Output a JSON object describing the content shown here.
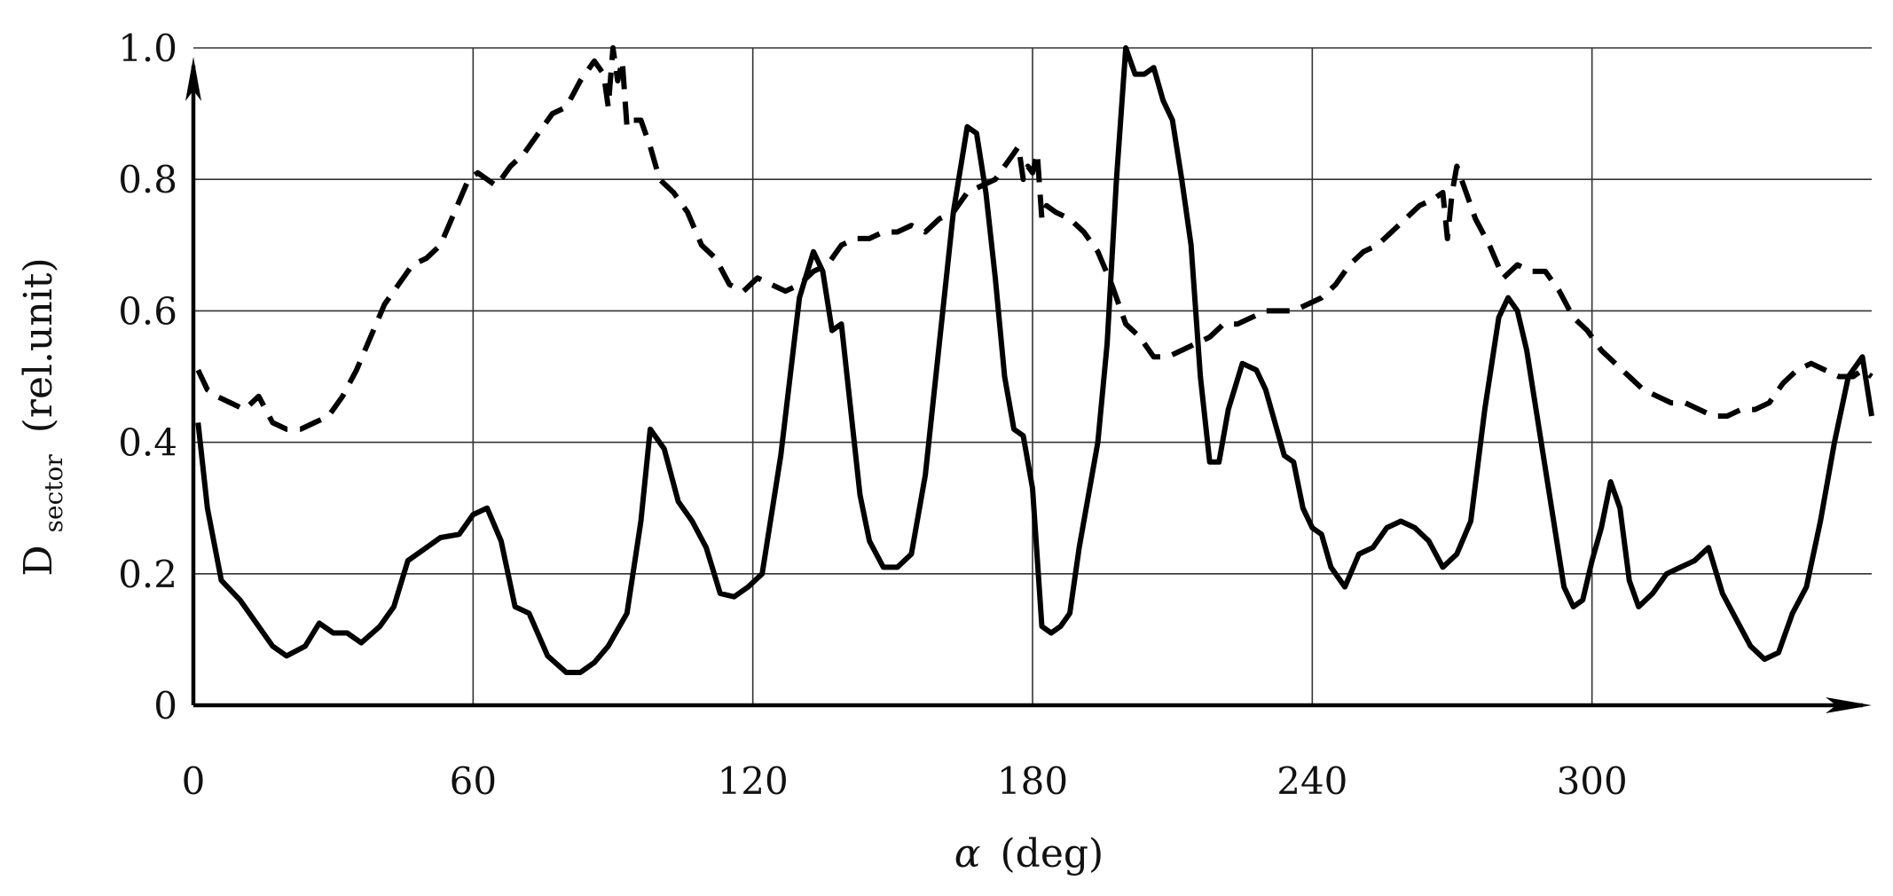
{
  "chart_data": {
    "type": "line",
    "xlabel": "α (deg)",
    "xlabel_symbol": "α",
    "xlabel_unit": "(deg)",
    "ylabel": "Dsector (rel.unit)",
    "ylabel_main": "D",
    "ylabel_sub": "sector",
    "ylabel_unit": "(rel.unit)",
    "xlim": [
      0,
      360
    ],
    "ylim": [
      0,
      1.0
    ],
    "xticks": [
      0,
      60,
      120,
      180,
      240,
      300
    ],
    "xtick_labels": [
      "0",
      "60",
      "120",
      "180",
      "240",
      "300"
    ],
    "yticks": [
      0,
      0.2,
      0.4,
      0.6,
      0.8,
      1.0
    ],
    "ytick_labels": [
      "0",
      "0.2",
      "0.4",
      "0.6",
      "0.8",
      "1.0"
    ],
    "grid": true,
    "colors": {
      "axis": "#000000",
      "grid": "#333333",
      "series": "#000000"
    },
    "series": [
      {
        "style": "solid",
        "x": [
          1,
          3,
          6,
          10,
          14,
          17,
          20,
          24,
          27,
          30,
          33,
          36,
          40,
          43,
          46,
          50,
          53,
          57,
          60,
          63,
          66,
          69,
          72,
          76,
          80,
          83,
          86,
          89,
          93,
          96,
          98,
          101,
          104,
          107,
          110,
          113,
          116,
          119,
          122,
          126,
          130,
          133,
          135,
          137,
          139,
          141,
          143,
          145,
          148,
          151,
          154,
          157,
          160,
          163,
          166,
          168,
          170,
          172,
          174,
          176,
          178,
          180,
          182,
          184,
          186,
          188,
          190,
          192,
          194,
          196,
          198,
          200,
          202,
          204,
          206,
          208,
          210,
          212,
          214,
          216,
          218,
          220,
          222,
          225,
          228,
          230,
          232,
          234,
          236,
          238,
          240,
          242,
          244,
          247,
          250,
          253,
          256,
          259,
          262,
          265,
          268,
          271,
          274,
          277,
          280,
          282,
          284,
          286,
          288,
          290,
          292,
          294,
          296,
          298,
          300,
          302,
          304,
          306,
          308,
          310,
          313,
          316,
          319,
          322,
          325,
          328,
          331,
          334,
          337,
          340,
          343,
          346,
          349,
          352,
          355,
          358,
          360
        ],
        "y": [
          0.43,
          0.3,
          0.19,
          0.16,
          0.12,
          0.09,
          0.075,
          0.09,
          0.125,
          0.11,
          0.11,
          0.095,
          0.12,
          0.15,
          0.22,
          0.24,
          0.255,
          0.26,
          0.29,
          0.3,
          0.25,
          0.15,
          0.14,
          0.075,
          0.05,
          0.05,
          0.065,
          0.09,
          0.14,
          0.28,
          0.42,
          0.39,
          0.31,
          0.28,
          0.24,
          0.17,
          0.165,
          0.18,
          0.2,
          0.38,
          0.62,
          0.69,
          0.66,
          0.57,
          0.58,
          0.45,
          0.32,
          0.25,
          0.21,
          0.21,
          0.23,
          0.35,
          0.55,
          0.75,
          0.88,
          0.87,
          0.78,
          0.65,
          0.5,
          0.42,
          0.41,
          0.33,
          0.12,
          0.11,
          0.12,
          0.14,
          0.24,
          0.32,
          0.4,
          0.55,
          0.8,
          1.0,
          0.96,
          0.96,
          0.97,
          0.92,
          0.89,
          0.8,
          0.7,
          0.5,
          0.37,
          0.37,
          0.45,
          0.52,
          0.51,
          0.48,
          0.43,
          0.38,
          0.37,
          0.3,
          0.27,
          0.26,
          0.21,
          0.18,
          0.23,
          0.24,
          0.27,
          0.28,
          0.27,
          0.25,
          0.21,
          0.23,
          0.28,
          0.45,
          0.59,
          0.62,
          0.6,
          0.54,
          0.45,
          0.36,
          0.27,
          0.18,
          0.15,
          0.16,
          0.22,
          0.27,
          0.34,
          0.3,
          0.19,
          0.15,
          0.17,
          0.2,
          0.21,
          0.22,
          0.24,
          0.17,
          0.13,
          0.09,
          0.07,
          0.08,
          0.14,
          0.18,
          0.28,
          0.4,
          0.5,
          0.53,
          0.44
        ]
      },
      {
        "style": "dashed",
        "x": [
          1,
          3,
          5,
          8,
          11,
          14,
          17,
          20,
          23,
          26,
          29,
          32,
          35,
          38,
          41,
          44,
          47,
          50,
          53,
          56,
          59,
          61,
          63,
          65,
          68,
          71,
          74,
          77,
          80,
          83,
          86,
          88,
          89,
          90,
          91,
          92,
          93,
          94,
          96,
          98,
          100,
          103,
          106,
          109,
          112,
          115,
          118,
          121,
          124,
          127,
          130,
          133,
          136,
          139,
          142,
          145,
          148,
          151,
          154,
          157,
          160,
          163,
          166,
          169,
          172,
          174,
          176,
          177,
          178,
          179,
          180,
          181,
          182,
          183,
          185,
          188,
          191,
          194,
          197,
          200,
          203,
          206,
          209,
          212,
          215,
          218,
          221,
          224,
          227,
          230,
          233,
          236,
          239,
          242,
          245,
          248,
          251,
          254,
          257,
          260,
          263,
          266,
          268,
          269,
          270,
          271,
          272,
          273,
          275,
          278,
          281,
          284,
          287,
          290,
          293,
          296,
          299,
          302,
          305,
          308,
          311,
          314,
          317,
          320,
          323,
          326,
          329,
          332,
          335,
          338,
          341,
          344,
          347,
          350,
          353,
          356,
          358,
          360
        ],
        "y": [
          0.51,
          0.48,
          0.47,
          0.46,
          0.45,
          0.47,
          0.43,
          0.42,
          0.42,
          0.43,
          0.44,
          0.47,
          0.51,
          0.56,
          0.61,
          0.64,
          0.67,
          0.68,
          0.7,
          0.75,
          0.8,
          0.81,
          0.8,
          0.79,
          0.82,
          0.84,
          0.87,
          0.9,
          0.91,
          0.95,
          0.98,
          0.96,
          0.91,
          1.0,
          0.95,
          0.98,
          0.88,
          0.89,
          0.89,
          0.85,
          0.8,
          0.78,
          0.75,
          0.7,
          0.68,
          0.64,
          0.63,
          0.65,
          0.64,
          0.63,
          0.64,
          0.66,
          0.67,
          0.7,
          0.71,
          0.71,
          0.72,
          0.72,
          0.73,
          0.72,
          0.74,
          0.75,
          0.78,
          0.79,
          0.8,
          0.82,
          0.84,
          0.85,
          0.8,
          0.82,
          0.81,
          0.84,
          0.74,
          0.76,
          0.75,
          0.74,
          0.72,
          0.69,
          0.64,
          0.58,
          0.56,
          0.53,
          0.53,
          0.54,
          0.55,
          0.56,
          0.58,
          0.58,
          0.59,
          0.6,
          0.6,
          0.6,
          0.61,
          0.62,
          0.64,
          0.67,
          0.69,
          0.7,
          0.72,
          0.74,
          0.76,
          0.77,
          0.78,
          0.71,
          0.78,
          0.82,
          0.8,
          0.78,
          0.74,
          0.7,
          0.65,
          0.67,
          0.66,
          0.66,
          0.63,
          0.59,
          0.57,
          0.54,
          0.52,
          0.5,
          0.48,
          0.47,
          0.46,
          0.46,
          0.45,
          0.44,
          0.44,
          0.45,
          0.45,
          0.46,
          0.49,
          0.51,
          0.52,
          0.51,
          0.5,
          0.5,
          0.51,
          0.5
        ]
      }
    ]
  }
}
